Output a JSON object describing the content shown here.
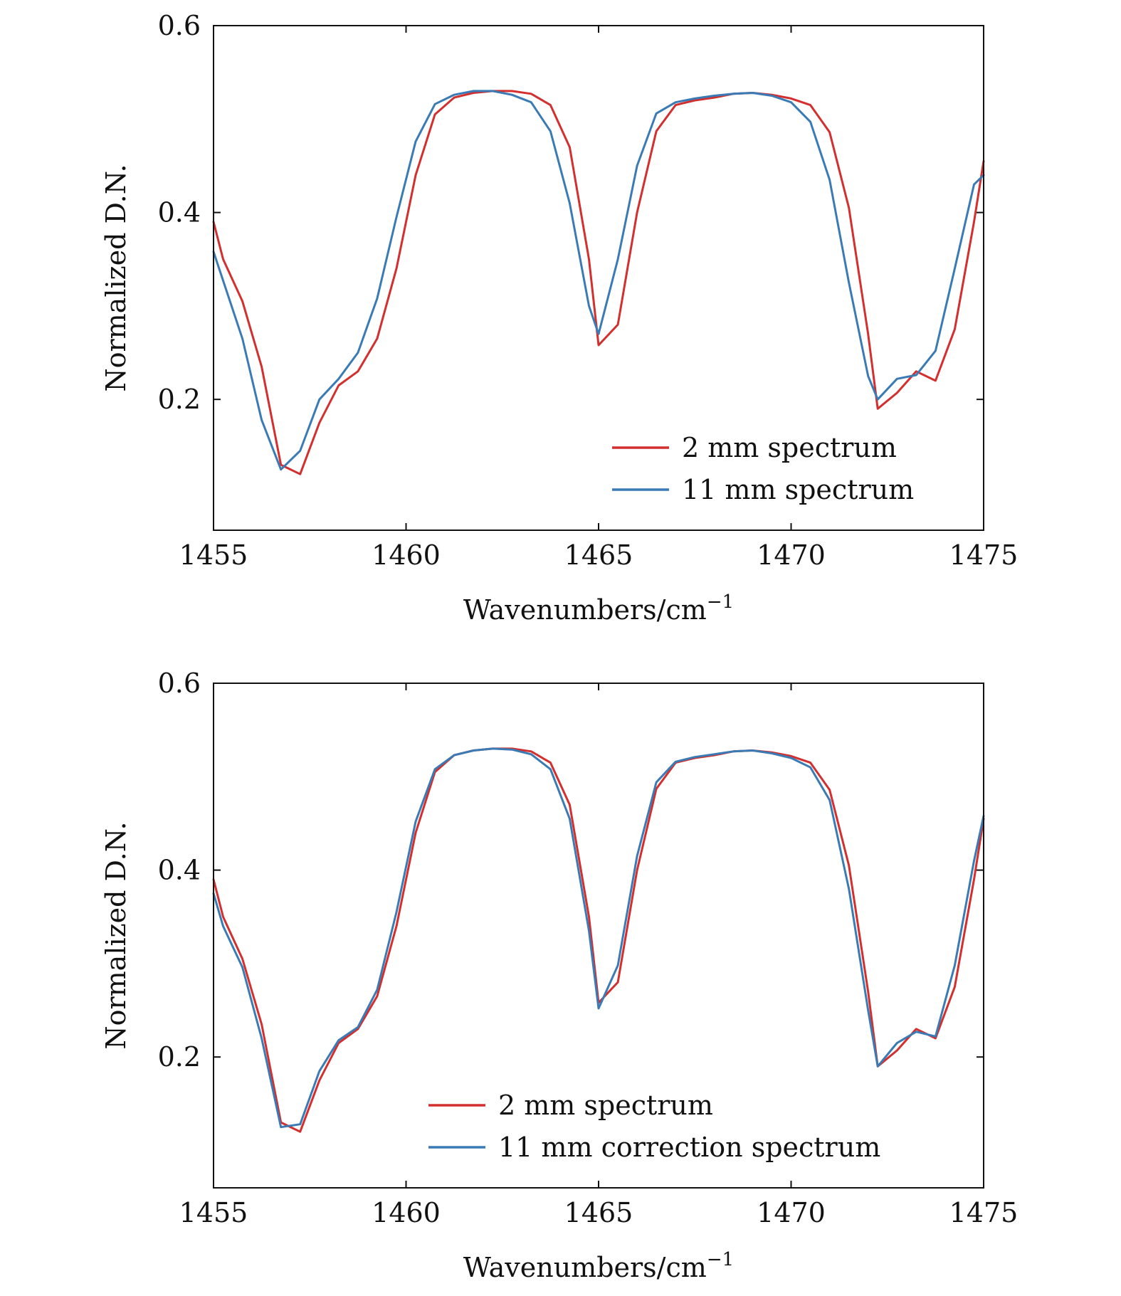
{
  "chart_data": [
    {
      "type": "line",
      "title": "",
      "xlabel": "Wavenumbers/cm",
      "xlabel_sup": "−1",
      "ylabel": "Normalized D.N.",
      "xlim": [
        1455,
        1475
      ],
      "ylim": [
        0.06,
        0.6
      ],
      "xticks": [
        1455,
        1460,
        1465,
        1470,
        1475
      ],
      "xtick_labels": [
        "1455",
        "1460",
        "1465",
        "1470",
        "1475"
      ],
      "yticks": [
        0.2,
        0.4,
        0.6
      ],
      "ytick_labels": [
        "0.2",
        "0.4",
        "0.6"
      ],
      "grid": false,
      "legend_position": "bottom-right",
      "series": [
        {
          "name": "2 mm spectrum",
          "color": "#d32f2f",
          "x": [
            1455.0,
            1455.25,
            1455.75,
            1456.25,
            1456.75,
            1457.25,
            1457.75,
            1458.25,
            1458.75,
            1459.25,
            1459.75,
            1460.25,
            1460.75,
            1461.25,
            1461.75,
            1462.25,
            1462.75,
            1463.25,
            1463.75,
            1464.25,
            1464.75,
            1465.0,
            1465.5,
            1466.0,
            1466.5,
            1467.0,
            1467.5,
            1468.0,
            1468.5,
            1469.0,
            1469.5,
            1470.0,
            1470.5,
            1471.0,
            1471.5,
            1472.0,
            1472.25,
            1472.75,
            1473.25,
            1473.75,
            1474.25,
            1474.75,
            1475.0
          ],
          "y": [
            0.39,
            0.35,
            0.305,
            0.235,
            0.13,
            0.12,
            0.175,
            0.215,
            0.23,
            0.265,
            0.34,
            0.44,
            0.505,
            0.523,
            0.528,
            0.53,
            0.53,
            0.527,
            0.515,
            0.47,
            0.35,
            0.258,
            0.28,
            0.4,
            0.487,
            0.515,
            0.52,
            0.523,
            0.527,
            0.528,
            0.526,
            0.522,
            0.515,
            0.486,
            0.405,
            0.27,
            0.19,
            0.207,
            0.23,
            0.22,
            0.275,
            0.39,
            0.455
          ]
        },
        {
          "name": "11 mm spectrum",
          "color": "#3a7ab5",
          "x": [
            1455.0,
            1455.75,
            1456.25,
            1456.75,
            1457.25,
            1457.75,
            1458.25,
            1458.75,
            1459.25,
            1459.75,
            1460.25,
            1460.75,
            1461.25,
            1461.75,
            1462.25,
            1462.75,
            1463.25,
            1463.75,
            1464.25,
            1464.75,
            1465.0,
            1465.5,
            1466.0,
            1466.5,
            1467.0,
            1467.5,
            1468.0,
            1468.5,
            1469.0,
            1469.5,
            1470.0,
            1470.5,
            1471.0,
            1471.5,
            1472.0,
            1472.25,
            1472.75,
            1473.25,
            1473.75,
            1474.25,
            1474.75,
            1475.0
          ],
          "y": [
            0.358,
            0.265,
            0.178,
            0.125,
            0.145,
            0.2,
            0.222,
            0.25,
            0.308,
            0.395,
            0.476,
            0.516,
            0.526,
            0.53,
            0.53,
            0.526,
            0.518,
            0.487,
            0.41,
            0.3,
            0.27,
            0.35,
            0.45,
            0.506,
            0.518,
            0.522,
            0.525,
            0.527,
            0.528,
            0.525,
            0.518,
            0.497,
            0.435,
            0.325,
            0.225,
            0.2,
            0.222,
            0.226,
            0.252,
            0.34,
            0.43,
            0.44
          ]
        }
      ]
    },
    {
      "type": "line",
      "title": "",
      "xlabel": "Wavenumbers/cm",
      "xlabel_sup": "−1",
      "ylabel": "Normalized D.N.",
      "xlim": [
        1455,
        1475
      ],
      "ylim": [
        0.06,
        0.6
      ],
      "xticks": [
        1455,
        1460,
        1465,
        1470,
        1475
      ],
      "xtick_labels": [
        "1455",
        "1460",
        "1465",
        "1470",
        "1475"
      ],
      "yticks": [
        0.2,
        0.4,
        0.6
      ],
      "ytick_labels": [
        "0.2",
        "0.4",
        "0.6"
      ],
      "grid": false,
      "legend_position": "bottom-right",
      "series": [
        {
          "name": "2 mm spectrum",
          "color": "#d32f2f",
          "x": [
            1455.0,
            1455.25,
            1455.75,
            1456.25,
            1456.75,
            1457.25,
            1457.75,
            1458.25,
            1458.75,
            1459.25,
            1459.75,
            1460.25,
            1460.75,
            1461.25,
            1461.75,
            1462.25,
            1462.75,
            1463.25,
            1463.75,
            1464.25,
            1464.75,
            1465.0,
            1465.5,
            1466.0,
            1466.5,
            1467.0,
            1467.5,
            1468.0,
            1468.5,
            1469.0,
            1469.5,
            1470.0,
            1470.5,
            1471.0,
            1471.5,
            1472.0,
            1472.25,
            1472.75,
            1473.25,
            1473.75,
            1474.25,
            1474.75,
            1475.0
          ],
          "y": [
            0.39,
            0.35,
            0.305,
            0.235,
            0.13,
            0.12,
            0.175,
            0.215,
            0.23,
            0.265,
            0.34,
            0.44,
            0.505,
            0.523,
            0.528,
            0.53,
            0.53,
            0.527,
            0.515,
            0.47,
            0.35,
            0.258,
            0.28,
            0.4,
            0.487,
            0.515,
            0.52,
            0.523,
            0.527,
            0.528,
            0.526,
            0.522,
            0.515,
            0.486,
            0.405,
            0.27,
            0.19,
            0.207,
            0.23,
            0.22,
            0.275,
            0.39,
            0.455
          ]
        },
        {
          "name": "11 mm correction spectrum",
          "color": "#3a7ab5",
          "x": [
            1455.0,
            1455.25,
            1455.75,
            1456.25,
            1456.75,
            1457.25,
            1457.75,
            1458.25,
            1458.75,
            1459.25,
            1459.75,
            1460.25,
            1460.75,
            1461.25,
            1461.75,
            1462.25,
            1462.75,
            1463.25,
            1463.75,
            1464.25,
            1464.75,
            1465.0,
            1465.5,
            1466.0,
            1466.5,
            1467.0,
            1467.5,
            1468.0,
            1468.5,
            1469.0,
            1469.5,
            1470.0,
            1470.5,
            1471.0,
            1471.5,
            1472.0,
            1472.25,
            1472.75,
            1473.25,
            1473.75,
            1474.25,
            1474.75,
            1475.0
          ],
          "y": [
            0.375,
            0.34,
            0.296,
            0.22,
            0.125,
            0.128,
            0.185,
            0.218,
            0.232,
            0.272,
            0.355,
            0.452,
            0.508,
            0.523,
            0.528,
            0.53,
            0.529,
            0.524,
            0.508,
            0.455,
            0.335,
            0.252,
            0.298,
            0.415,
            0.494,
            0.516,
            0.521,
            0.524,
            0.527,
            0.528,
            0.525,
            0.52,
            0.51,
            0.475,
            0.38,
            0.25,
            0.19,
            0.215,
            0.227,
            0.222,
            0.298,
            0.41,
            0.458
          ]
        }
      ]
    }
  ]
}
